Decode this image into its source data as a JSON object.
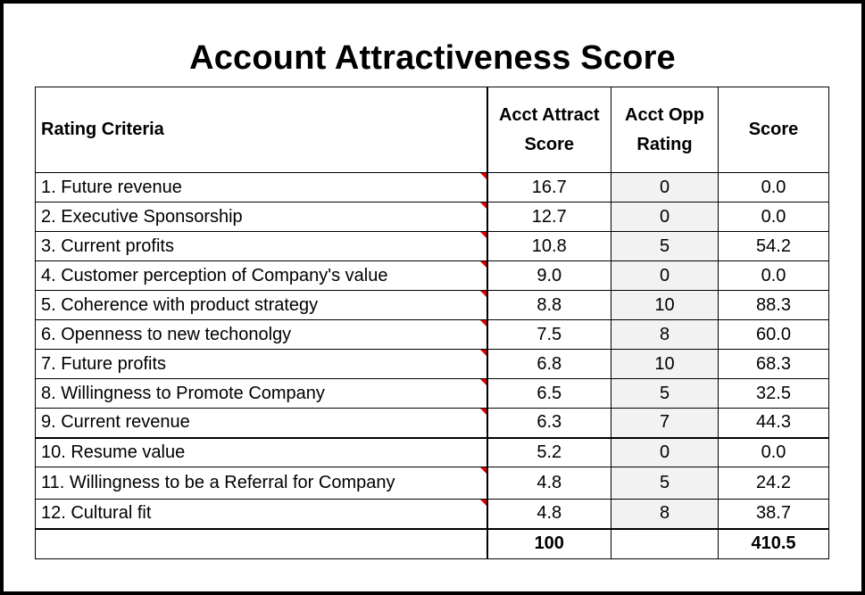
{
  "title": "Account Attractiveness Score",
  "headers": {
    "criteria": "Rating Criteria",
    "attract_score": "Acct Attract Score",
    "opp_rating": "Acct Opp Rating",
    "score": "Score"
  },
  "rows": [
    {
      "criteria": "1. Future revenue",
      "attract": "16.7",
      "opp": "0",
      "score": "0.0",
      "comment": true
    },
    {
      "criteria": "2. Executive Sponsorship",
      "attract": "12.7",
      "opp": "0",
      "score": "0.0",
      "comment": true
    },
    {
      "criteria": "3. Current profits",
      "attract": "10.8",
      "opp": "5",
      "score": "54.2",
      "comment": true
    },
    {
      "criteria": "4. Customer perception of Company's value",
      "attract": "9.0",
      "opp": "0",
      "score": "0.0",
      "comment": true
    },
    {
      "criteria": "5. Coherence with product strategy",
      "attract": "8.8",
      "opp": "10",
      "score": "88.3",
      "comment": true
    },
    {
      "criteria": "6. Openness to new techonolgy",
      "attract": "7.5",
      "opp": "8",
      "score": "60.0",
      "comment": true
    },
    {
      "criteria": "7. Future profits",
      "attract": "6.8",
      "opp": "10",
      "score": "68.3",
      "comment": true
    },
    {
      "criteria": "8. Willingness to Promote Company",
      "attract": "6.5",
      "opp": "5",
      "score": "32.5",
      "comment": true
    },
    {
      "criteria": "9. Current revenue",
      "attract": "6.3",
      "opp": "7",
      "score": "44.3",
      "comment": true
    },
    {
      "criteria": "10. Resume value",
      "attract": "5.2",
      "opp": "0",
      "score": "0.0",
      "comment": false
    },
    {
      "criteria": "11. Willingness to be a Referral for Company",
      "attract": "4.8",
      "opp": "5",
      "score": "24.2",
      "comment": true
    },
    {
      "criteria": "12. Cultural fit",
      "attract": "4.8",
      "opp": "8",
      "score": "38.7",
      "comment": true
    }
  ],
  "totals": {
    "label": "",
    "attract": "100",
    "opp": "",
    "score": "410.5"
  },
  "colors": {
    "comment_indicator": "#e00000",
    "opp_column_fill": "#f2f2f2"
  }
}
